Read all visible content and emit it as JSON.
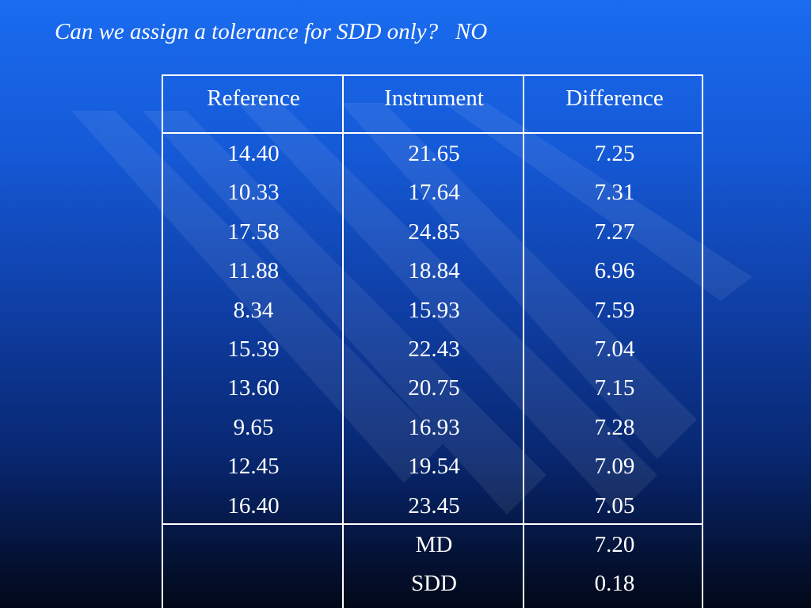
{
  "slide": {
    "title": "Can we assign a tolerance for SDD only?   NO"
  },
  "table": {
    "headers": [
      "Reference",
      "Instrument",
      "Difference"
    ],
    "reference": [
      "14.40",
      "10.33",
      "17.58",
      "11.88",
      "8.34",
      "15.39",
      "13.60",
      "9.65",
      "12.45",
      "16.40"
    ],
    "instrument": [
      "21.65",
      "17.64",
      "24.85",
      "18.84",
      "15.93",
      "22.43",
      "20.75",
      "16.93",
      "19.54",
      "23.45"
    ],
    "difference": [
      "7.25",
      "7.31",
      "7.27",
      "6.96",
      "7.59",
      "7.04",
      "7.15",
      "7.28",
      "7.09",
      "7.05"
    ],
    "summary": {
      "labels": [
        "MD",
        "SDD"
      ],
      "values": [
        "7.20",
        "0.18"
      ]
    }
  },
  "colors": {
    "background_top": "#1a6cf0",
    "background_bottom": "#020818",
    "text": "#ffffff",
    "grid": "#ffffff"
  }
}
